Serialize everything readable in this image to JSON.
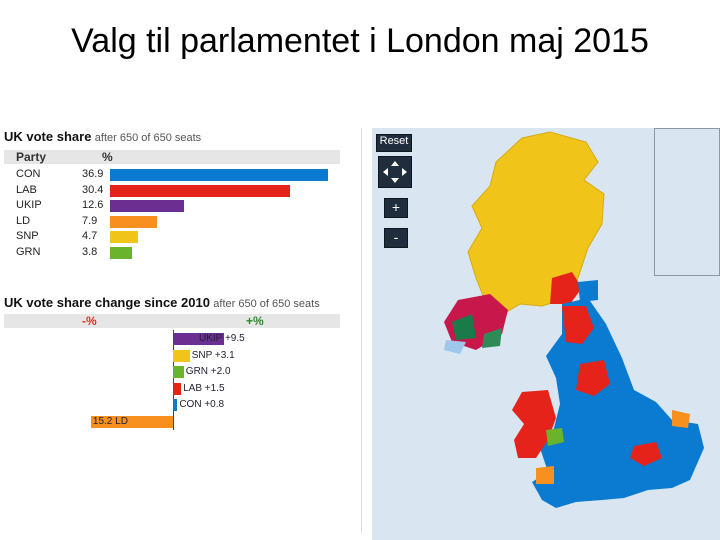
{
  "slide": {
    "title": "Valg til parlamentet i London maj 2015"
  },
  "vote_share": {
    "title": "UK vote share",
    "subtitle": "after 650 of 650 seats",
    "col_party": "Party",
    "col_pct": "%",
    "rows": [
      {
        "party": "CON",
        "value": "36.9",
        "color": "#0a7bd1"
      },
      {
        "party": "LAB",
        "value": "30.4",
        "color": "#e5231a"
      },
      {
        "party": "UKIP",
        "value": "12.6",
        "color": "#6b2f91"
      },
      {
        "party": "LD",
        "value": "7.9",
        "color": "#f7901e"
      },
      {
        "party": "SNP",
        "value": "4.7",
        "color": "#f0c419"
      },
      {
        "party": "GRN",
        "value": "3.8",
        "color": "#6ab42d"
      }
    ]
  },
  "vote_change": {
    "title": "UK vote share change since 2010",
    "subtitle": "after 650 of 650 seats",
    "neg_label": "-%",
    "pos_label": "+%",
    "rows": [
      {
        "label": "UKIP +9.5",
        "change": 9.5,
        "color": "#6b2f91"
      },
      {
        "label": "SNP +3.1",
        "change": 3.1,
        "color": "#f0c419"
      },
      {
        "label": "GRN +2.0",
        "change": 2.0,
        "color": "#6ab42d"
      },
      {
        "label": "LAB +1.5",
        "change": 1.5,
        "color": "#e5231a"
      },
      {
        "label": "CON +0.8",
        "change": 0.8,
        "color": "#0a7bd1"
      },
      {
        "label": "15.2 LD",
        "change": -15.2,
        "color": "#f7901e"
      }
    ]
  },
  "map": {
    "reset_label": "Reset",
    "zoom_in_label": "+",
    "zoom_out_label": "-",
    "colors": {
      "sea": "#d9e6f1",
      "snp": "#f0c419",
      "con": "#0a7bd1",
      "lab": "#e5231a",
      "ld": "#f7901e",
      "green": "#6ab42d",
      "ni_green": "#1a7a4a",
      "dup": "#c8174b",
      "sinn": "#2e8b57"
    }
  }
}
